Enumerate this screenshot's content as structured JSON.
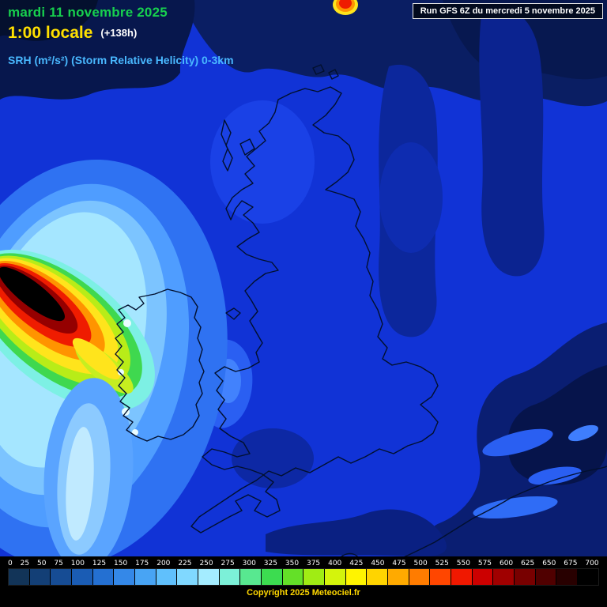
{
  "header": {
    "date": "mardi 11 novembre 2025",
    "time": "1:00 locale",
    "offset": "(+138h)",
    "parameter": "SRH (m²/s²) (Storm Relative Helicity) 0-3km",
    "run_info": "Run GFS 6Z du mercredi 5 novembre 2025"
  },
  "legend": {
    "ticks": [
      "0",
      "25",
      "50",
      "75",
      "100",
      "125",
      "150",
      "175",
      "200",
      "225",
      "250",
      "275",
      "300",
      "325",
      "350",
      "375",
      "400",
      "425",
      "450",
      "475",
      "500",
      "525",
      "550",
      "575",
      "600",
      "625",
      "650",
      "675",
      "700"
    ],
    "colors": [
      "#123458",
      "#133f76",
      "#164c94",
      "#1a5cb4",
      "#2470d2",
      "#3488e8",
      "#48a4f4",
      "#60c0fc",
      "#80d8ff",
      "#a4ecff",
      "#7cf0d8",
      "#58e890",
      "#3cdc50",
      "#64e028",
      "#a0ec14",
      "#d4f40c",
      "#fff400",
      "#ffd400",
      "#ffaa00",
      "#ff7c00",
      "#ff4600",
      "#f01800",
      "#cc0000",
      "#a00000",
      "#780000",
      "#500000",
      "#280000",
      "#000000"
    ]
  },
  "footer": {
    "copyright": "Copyright 2025 Meteociel.fr"
  }
}
